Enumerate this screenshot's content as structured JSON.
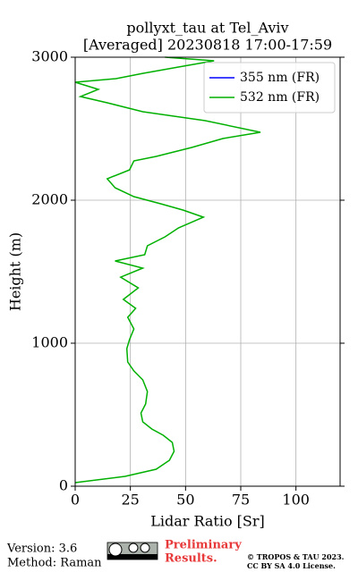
{
  "chart_data": {
    "type": "line",
    "title": "pollyxt_tau at Tel_Aviv",
    "subtitle": "[Averaged] 20230818 17:00-17:59",
    "x_label": "Lidar Ratio [Sr]",
    "y_label": "Height (m)",
    "xlim": [
      0,
      120
    ],
    "ylim": [
      0,
      3000
    ],
    "xticks": [
      0,
      25,
      50,
      75,
      100
    ],
    "yticks": [
      0,
      1000,
      2000,
      3000
    ],
    "grid": true,
    "legend": "upper right",
    "series": [
      {
        "name": "355 nm (FR)",
        "color": "#0000ff",
        "values": [],
        "heights": []
      },
      {
        "name": "532 nm (FR)",
        "color": "#00b000",
        "values": [
          0,
          22.6,
          36.7,
          42.7,
          44.8,
          44,
          39.9,
          34.7,
          30.6,
          29.8,
          31.9,
          32.7,
          30.6,
          26.6,
          23.8,
          23.4,
          24.6,
          26.6,
          23.8,
          27.4,
          21.8,
          28.6,
          20.6,
          30.6,
          18.1,
          31.5,
          32.7,
          40.7,
          46.8,
          58.1,
          48.8,
          38.7,
          26.6,
          18.1,
          14.5,
          24.6,
          26.6,
          36.7,
          52.8,
          66.9,
          83.9,
          58.9,
          30.6,
          14.5,
          2.4,
          10.5,
          0,
          18.5,
          30.6,
          46.8,
          62.9,
          40.7
        ],
        "heights": [
          25,
          69,
          119,
          181,
          244,
          306,
          356,
          400,
          450,
          512,
          575,
          662,
          744,
          806,
          869,
          962,
          1025,
          1100,
          1181,
          1244,
          1306,
          1387,
          1462,
          1525,
          1575,
          1619,
          1681,
          1744,
          1806,
          1881,
          1931,
          1975,
          2025,
          2087,
          2150,
          2212,
          2275,
          2306,
          2369,
          2431,
          2475,
          2556,
          2619,
          2681,
          2725,
          2775,
          2825,
          2850,
          2887,
          2931,
          2975,
          3000
        ]
      }
    ]
  },
  "footer": {
    "version": "Version: 3.6",
    "method": "Method: Raman",
    "preliminary": [
      "Preliminary",
      "Results."
    ],
    "copyright": [
      "© TROPOS & TAU 2023.",
      "CC BY SA 4.0 License."
    ]
  }
}
